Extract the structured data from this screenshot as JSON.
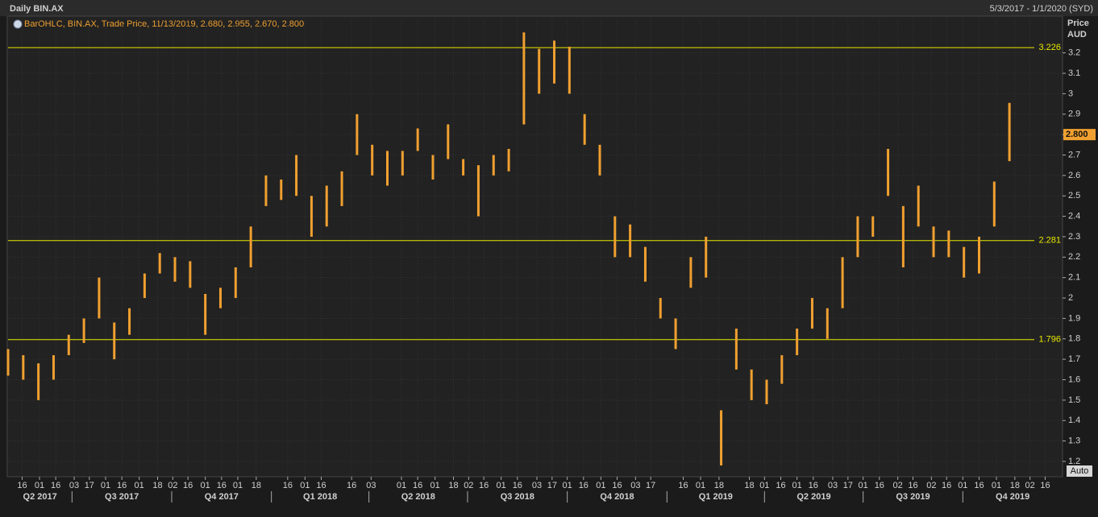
{
  "chart_data": {
    "type": "ohlc",
    "title": "Daily BIN.AX",
    "subtitle": "5/3/2017 - 1/1/2020 (SYD)",
    "legend": "BarOHLC, BIN.AX, Trade Price, 11/13/2019, 2.680, 2.955, 2.670, 2.800",
    "y_label": [
      "Price",
      "AUD"
    ],
    "button": "Auto",
    "xlim": [
      "2017-05-03",
      "2020-01-01"
    ],
    "ylim": [
      1.125,
      3.38
    ],
    "yticks": [
      1.2,
      1.3,
      1.4,
      1.5,
      1.6,
      1.7,
      1.8,
      1.9,
      2,
      2.1,
      2.2,
      2.3,
      2.4,
      2.5,
      2.6,
      2.7,
      2.8,
      2.9,
      3,
      3.1,
      3.2
    ],
    "xticks": [
      {
        "value": "2017-05-16",
        "label": "16"
      },
      {
        "value": "2017-06-01",
        "label": "01"
      },
      {
        "value": "2017-06-16",
        "label": "16"
      },
      {
        "value": "2017-07-03",
        "label": "03"
      },
      {
        "value": "2017-07-17",
        "label": "17"
      },
      {
        "value": "2017-08-01",
        "label": "01"
      },
      {
        "value": "2017-08-16",
        "label": "16"
      },
      {
        "value": "2017-09-01",
        "label": "01"
      },
      {
        "value": "2017-09-18",
        "label": "18"
      },
      {
        "value": "2017-10-02",
        "label": "02"
      },
      {
        "value": "2017-10-16",
        "label": "16"
      },
      {
        "value": "2017-11-01",
        "label": "01"
      },
      {
        "value": "2017-11-16",
        "label": "16"
      },
      {
        "value": "2017-12-01",
        "label": "01"
      },
      {
        "value": "2017-12-18",
        "label": "18"
      },
      {
        "value": "2018-01-16",
        "label": "16"
      },
      {
        "value": "2018-02-01",
        "label": "01"
      },
      {
        "value": "2018-02-16",
        "label": "16"
      },
      {
        "value": "2018-03-16",
        "label": "16"
      },
      {
        "value": "2018-04-03",
        "label": "03"
      },
      {
        "value": "2018-05-01",
        "label": "01"
      },
      {
        "value": "2018-05-16",
        "label": "16"
      },
      {
        "value": "2018-06-01",
        "label": "01"
      },
      {
        "value": "2018-06-18",
        "label": "18"
      },
      {
        "value": "2018-07-02",
        "label": "02"
      },
      {
        "value": "2018-07-16",
        "label": "16"
      },
      {
        "value": "2018-08-01",
        "label": "01"
      },
      {
        "value": "2018-08-16",
        "label": "16"
      },
      {
        "value": "2018-09-03",
        "label": "03"
      },
      {
        "value": "2018-09-17",
        "label": "17"
      },
      {
        "value": "2018-10-01",
        "label": "01"
      },
      {
        "value": "2018-10-16",
        "label": "16"
      },
      {
        "value": "2018-11-01",
        "label": "01"
      },
      {
        "value": "2018-11-16",
        "label": "16"
      },
      {
        "value": "2018-12-03",
        "label": "03"
      },
      {
        "value": "2018-12-17",
        "label": "17"
      },
      {
        "value": "2019-01-16",
        "label": "16"
      },
      {
        "value": "2019-02-01",
        "label": "01"
      },
      {
        "value": "2019-02-18",
        "label": "18"
      },
      {
        "value": "2019-03-18",
        "label": "18"
      },
      {
        "value": "2019-04-01",
        "label": "01"
      },
      {
        "value": "2019-04-16",
        "label": "16"
      },
      {
        "value": "2019-05-01",
        "label": "01"
      },
      {
        "value": "2019-05-16",
        "label": "16"
      },
      {
        "value": "2019-06-03",
        "label": "03"
      },
      {
        "value": "2019-06-17",
        "label": "17"
      },
      {
        "value": "2019-07-01",
        "label": "01"
      },
      {
        "value": "2019-07-16",
        "label": "16"
      },
      {
        "value": "2019-08-02",
        "label": "02"
      },
      {
        "value": "2019-08-16",
        "label": "16"
      },
      {
        "value": "2019-09-02",
        "label": "02"
      },
      {
        "value": "2019-09-16",
        "label": "16"
      },
      {
        "value": "2019-10-01",
        "label": "01"
      },
      {
        "value": "2019-10-16",
        "label": "16"
      },
      {
        "value": "2019-11-01",
        "label": "01"
      },
      {
        "value": "2019-11-18",
        "label": "18"
      },
      {
        "value": "2019-12-02",
        "label": "02"
      },
      {
        "value": "2019-12-16",
        "label": "16"
      }
    ],
    "quarters": [
      {
        "value": "2017-04-01",
        "label": "Q2 2017"
      },
      {
        "value": "2017-07-01",
        "label": "Q3 2017"
      },
      {
        "value": "2017-10-01",
        "label": "Q4 2017"
      },
      {
        "value": "2018-01-01",
        "label": "Q1 2018"
      },
      {
        "value": "2018-04-01",
        "label": "Q2 2018"
      },
      {
        "value": "2018-07-01",
        "label": "Q3 2018"
      },
      {
        "value": "2018-10-01",
        "label": "Q4 2018"
      },
      {
        "value": "2019-01-01",
        "label": "Q1 2019"
      },
      {
        "value": "2019-04-01",
        "label": "Q2 2019"
      },
      {
        "value": "2019-07-01",
        "label": "Q3 2019"
      },
      {
        "value": "2019-10-01",
        "label": "Q4 2019"
      }
    ],
    "grid": true,
    "levels": [
      3.226,
      2.281,
      1.796
    ],
    "level_color": "#e8e800",
    "last_price": {
      "value": 2.8,
      "label": "2.800"
    },
    "x": [
      "2017-05-03",
      "2017-05-17",
      "2017-05-31",
      "2017-06-14",
      "2017-06-28",
      "2017-07-12",
      "2017-07-26",
      "2017-08-09",
      "2017-08-23",
      "2017-09-06",
      "2017-09-20",
      "2017-10-04",
      "2017-10-18",
      "2017-11-01",
      "2017-11-15",
      "2017-11-29",
      "2017-12-13",
      "2017-12-27",
      "2018-01-10",
      "2018-01-24",
      "2018-02-07",
      "2018-02-21",
      "2018-03-07",
      "2018-03-21",
      "2018-04-04",
      "2018-04-18",
      "2018-05-02",
      "2018-05-16",
      "2018-05-30",
      "2018-06-13",
      "2018-06-27",
      "2018-07-11",
      "2018-07-25",
      "2018-08-08",
      "2018-08-22",
      "2018-09-05",
      "2018-09-19",
      "2018-10-03",
      "2018-10-17",
      "2018-10-31",
      "2018-11-14",
      "2018-11-28",
      "2018-12-12",
      "2018-12-26",
      "2019-01-09",
      "2019-01-23",
      "2019-02-06",
      "2019-02-20",
      "2019-03-06",
      "2019-03-20",
      "2019-04-03",
      "2019-04-17",
      "2019-05-01",
      "2019-05-15",
      "2019-05-29",
      "2019-06-12",
      "2019-06-26",
      "2019-07-10",
      "2019-07-24",
      "2019-08-07",
      "2019-08-21",
      "2019-09-04",
      "2019-09-18",
      "2019-10-02",
      "2019-10-16",
      "2019-10-30",
      "2019-11-13"
    ],
    "series": [
      {
        "color": "#f0a030",
        "high": [
          1.75,
          1.72,
          1.68,
          1.72,
          1.82,
          1.9,
          2.1,
          1.88,
          1.95,
          2.12,
          2.22,
          2.2,
          2.18,
          2.02,
          2.05,
          2.15,
          2.35,
          2.6,
          2.58,
          2.7,
          2.5,
          2.55,
          2.62,
          2.9,
          2.75,
          2.72,
          2.72,
          2.83,
          2.7,
          2.85,
          2.68,
          2.65,
          2.7,
          2.73,
          3.3,
          3.22,
          3.26,
          3.23,
          2.9,
          2.75,
          2.4,
          2.36,
          2.25,
          2.0,
          1.9,
          2.2,
          2.3,
          1.45,
          1.85,
          1.65,
          1.6,
          1.72,
          1.85,
          2.0,
          1.95,
          2.2,
          2.4,
          2.4,
          2.73,
          2.45,
          2.55,
          2.35,
          2.33,
          2.25,
          2.3,
          2.57,
          2.955
        ],
        "low": [
          1.62,
          1.6,
          1.5,
          1.6,
          1.72,
          1.78,
          1.9,
          1.7,
          1.82,
          2.0,
          2.12,
          2.08,
          2.05,
          1.82,
          1.95,
          2.0,
          2.15,
          2.45,
          2.48,
          2.5,
          2.3,
          2.35,
          2.45,
          2.7,
          2.6,
          2.55,
          2.6,
          2.72,
          2.58,
          2.68,
          2.6,
          2.4,
          2.6,
          2.62,
          2.85,
          3.0,
          3.05,
          3.0,
          2.75,
          2.6,
          2.2,
          2.2,
          2.08,
          1.9,
          1.75,
          2.05,
          2.1,
          1.18,
          1.65,
          1.5,
          1.48,
          1.58,
          1.72,
          1.85,
          1.8,
          1.95,
          2.2,
          2.3,
          2.5,
          2.15,
          2.35,
          2.2,
          2.2,
          2.1,
          2.12,
          2.35,
          2.67
        ]
      }
    ]
  }
}
